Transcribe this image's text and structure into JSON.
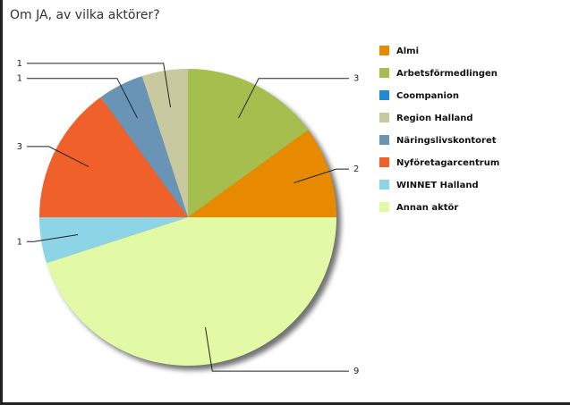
{
  "chart_data": {
    "type": "pie",
    "title": "Om JA, av vilka aktörer?",
    "categories": [
      "Almi",
      "Arbetsförmedlingen",
      "Coompanion",
      "Region Halland",
      "Näringslivskontoret",
      "Nyföretagarcentrum",
      "WINNET Halland",
      "Annan aktör"
    ],
    "values": [
      2,
      3,
      0,
      1,
      1,
      3,
      1,
      9
    ],
    "colors": [
      "#e88a00",
      "#a6be4e",
      "#1f8bd6",
      "#c9c9a0",
      "#6a94b5",
      "#f0602b",
      "#8cd4e6",
      "#e2f9a6"
    ]
  }
}
